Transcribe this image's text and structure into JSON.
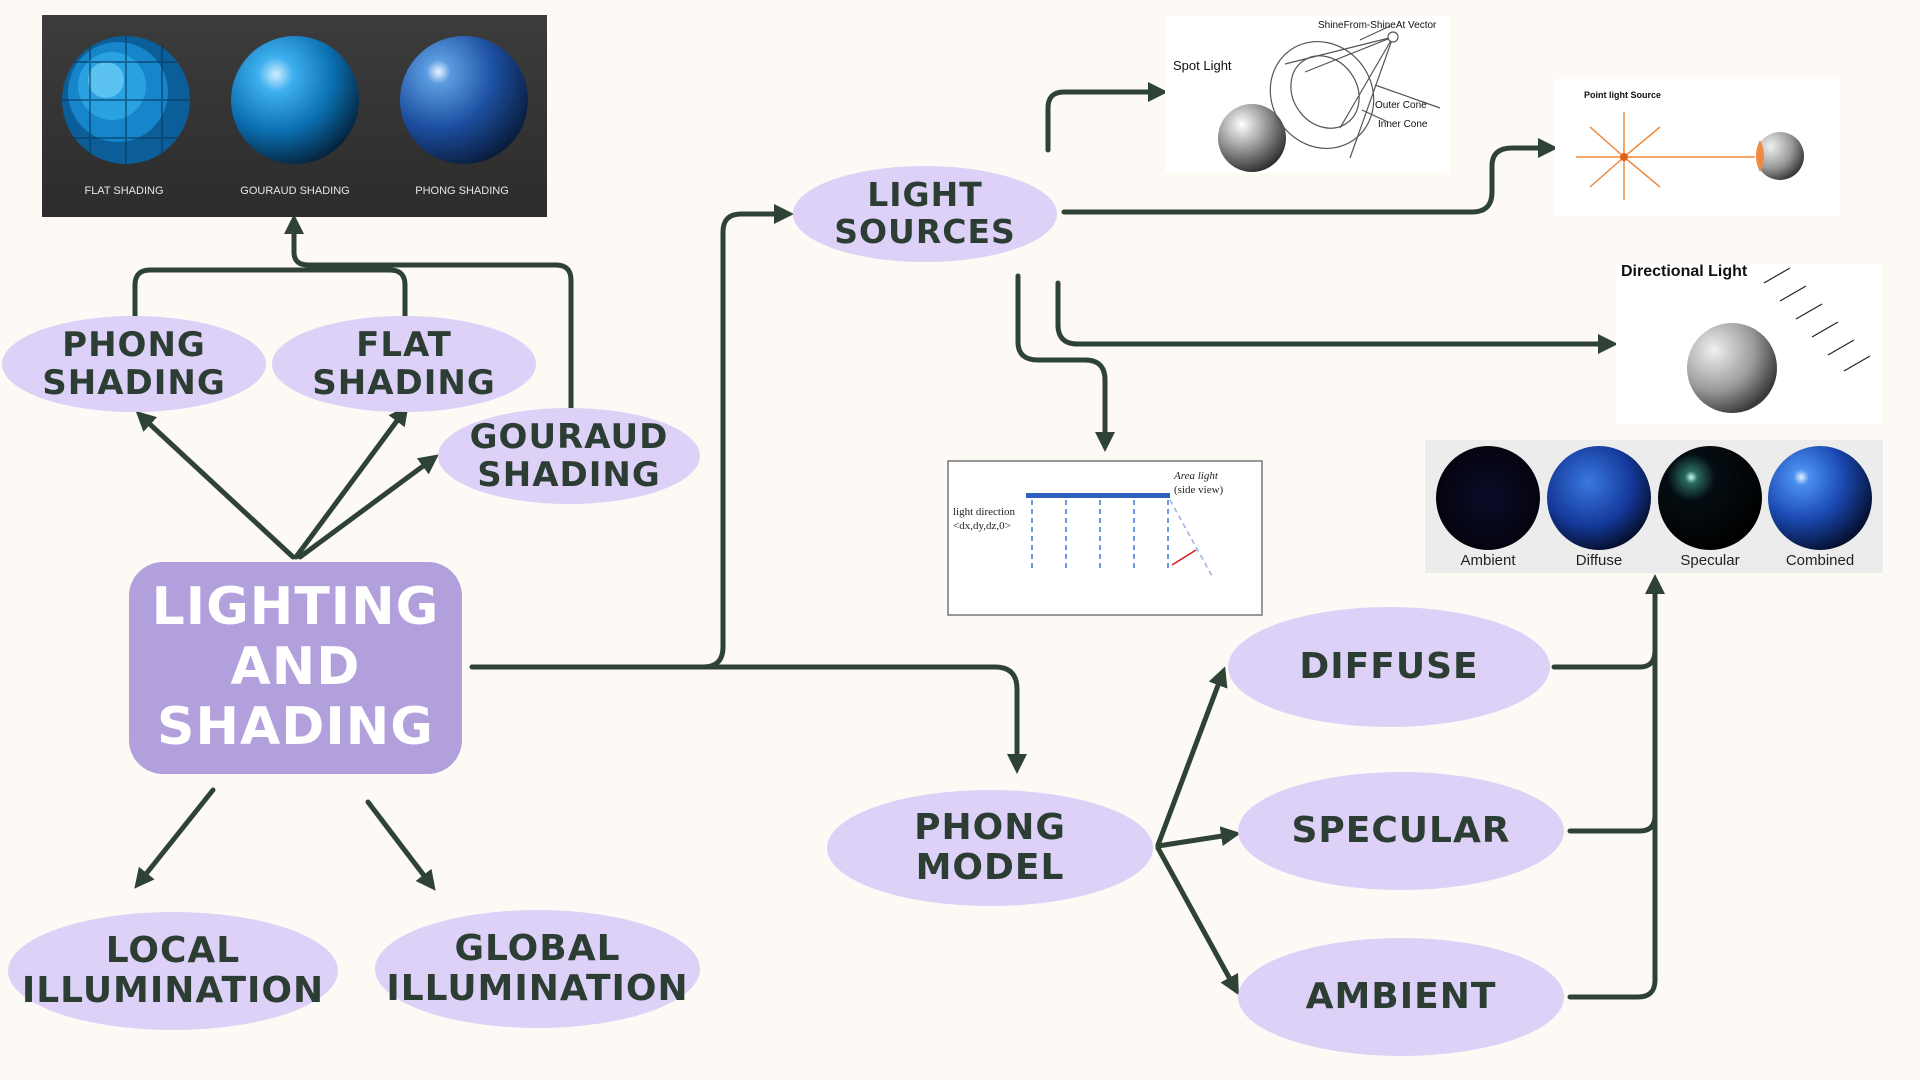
{
  "central": {
    "line1": "LIGHTING AND",
    "line2": "SHADING"
  },
  "nodes": {
    "phong_shading": [
      "PHONG",
      "SHADING"
    ],
    "flat_shading": [
      "FLAT",
      "SHADING"
    ],
    "gouraud_shading": [
      "GOURAUD",
      "SHADING"
    ],
    "local_illumination": [
      "LOCAL",
      "ILLUMINATION"
    ],
    "global_illumination": [
      "GLOBAL",
      "ILLUMINATION"
    ],
    "light_sources": [
      "LIGHT",
      "SOURCES"
    ],
    "phong_model": [
      "PHONG",
      "MODEL"
    ],
    "diffuse": [
      "DIFFUSE"
    ],
    "specular": [
      "SPECULAR"
    ],
    "ambient": [
      "AMBIENT"
    ]
  },
  "shading_image": {
    "captions": [
      "FLAT SHADING",
      "GOURAUD SHADING",
      "PHONG SHADING"
    ]
  },
  "spot_light_image": {
    "title": "Spot Light",
    "vector_label": "ShineFrom-ShineAt Vector",
    "outer_label": "Outer Cone",
    "inner_label": "Inner Cone"
  },
  "point_light_image": {
    "title": "Point light Source"
  },
  "directional_light_image": {
    "title": "Directional Light"
  },
  "area_light_image": {
    "area_label": "Area light",
    "side_view": "(side view)",
    "dir_label": "light direction",
    "dir_vector": "<dx,dy,dz,0>"
  },
  "phong_components_image": {
    "captions": [
      "Ambient",
      "Diffuse",
      "Specular",
      "Combined"
    ]
  },
  "colors": {
    "node_fill": "#ddd1f7",
    "central_fill": "#b1a0dc",
    "text": "#2c3d33",
    "arrow": "#2f4236",
    "background": "#fdfaf6"
  }
}
